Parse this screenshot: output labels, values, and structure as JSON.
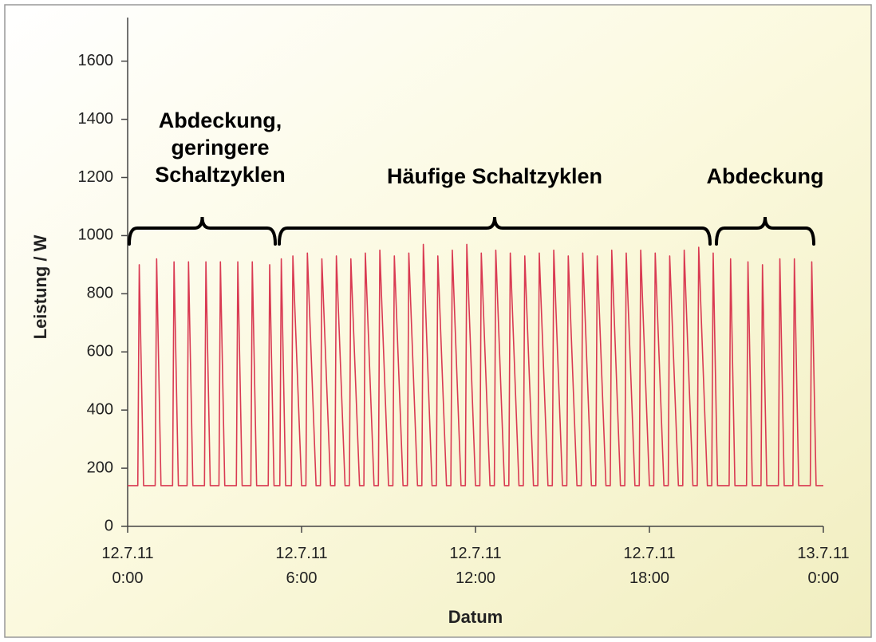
{
  "chart_data": {
    "type": "line",
    "xlabel": "Datum",
    "ylabel": "Leistung / W",
    "color": "#d93a52",
    "xlim": [
      0,
      24
    ],
    "ylim": [
      0,
      1750
    ],
    "xticks": [
      {
        "value": 0,
        "label": "12.7.11 0:00"
      },
      {
        "value": 6,
        "label": "12.7.11 6:00"
      },
      {
        "value": 12,
        "label": "12.7.11 12:00"
      },
      {
        "value": 18,
        "label": "12.7.11 18:00"
      },
      {
        "value": 24,
        "label": "13.7.11 0:00"
      }
    ],
    "yticks": [
      0,
      200,
      400,
      600,
      800,
      1000,
      1200,
      1400,
      1600
    ],
    "grid": false,
    "annotations": [
      {
        "text": [
          "Abdeckung,",
          "geringere",
          "Schaltzyklen"
        ]
      },
      {
        "text": [
          "Häufige Schaltzyklen"
        ]
      },
      {
        "text": [
          "Abdeckung"
        ]
      }
    ],
    "x": [
      0,
      0.35,
      0.4,
      0.55,
      0.95,
      1.0,
      1.15,
      1.55,
      1.6,
      1.75,
      2.05,
      2.1,
      2.25,
      2.65,
      2.7,
      2.85,
      3.15,
      3.2,
      3.35,
      3.75,
      3.8,
      3.95,
      4.25,
      4.3,
      4.45,
      4.85,
      4.9,
      5.05,
      5.25,
      5.3,
      5.45,
      5.65,
      5.7,
      6.0,
      6.15,
      6.2,
      6.5,
      6.65,
      6.7,
      7.0,
      7.15,
      7.2,
      7.5,
      7.65,
      7.7,
      8.0,
      8.15,
      8.2,
      8.5,
      8.65,
      8.7,
      9.0,
      9.15,
      9.2,
      9.5,
      9.65,
      9.7,
      10.0,
      10.15,
      10.2,
      10.5,
      10.65,
      10.7,
      11.0,
      11.15,
      11.2,
      11.5,
      11.65,
      11.7,
      12.0,
      12.15,
      12.2,
      12.5,
      12.65,
      12.7,
      13.0,
      13.15,
      13.2,
      13.5,
      13.65,
      13.7,
      14.0,
      14.15,
      14.2,
      14.5,
      14.65,
      14.7,
      15.0,
      15.15,
      15.2,
      15.5,
      15.65,
      15.7,
      16.0,
      16.15,
      16.2,
      16.5,
      16.65,
      16.7,
      17.0,
      17.15,
      17.2,
      17.5,
      17.65,
      17.7,
      18.0,
      18.15,
      18.2,
      18.5,
      18.65,
      18.7,
      19.0,
      19.15,
      19.2,
      19.5,
      19.65,
      19.7,
      20.0,
      20.15,
      20.2,
      20.35,
      20.75,
      20.8,
      20.95,
      21.35,
      21.4,
      21.55,
      21.85,
      21.9,
      22.05,
      22.45,
      22.5,
      22.65,
      22.95,
      23.0,
      23.15,
      23.55,
      23.6,
      23.75,
      24
    ],
    "values": [
      140,
      140,
      900,
      140,
      140,
      920,
      140,
      140,
      910,
      140,
      140,
      910,
      140,
      140,
      910,
      140,
      140,
      910,
      140,
      140,
      910,
      140,
      140,
      910,
      140,
      140,
      900,
      140,
      140,
      920,
      140,
      140,
      930,
      140,
      140,
      940,
      140,
      140,
      920,
      140,
      140,
      930,
      140,
      140,
      920,
      140,
      140,
      940,
      140,
      140,
      950,
      140,
      140,
      930,
      140,
      140,
      940,
      140,
      140,
      970,
      140,
      140,
      930,
      140,
      140,
      950,
      140,
      140,
      970,
      140,
      140,
      940,
      140,
      140,
      950,
      140,
      140,
      940,
      140,
      140,
      930,
      140,
      140,
      940,
      140,
      140,
      950,
      140,
      140,
      930,
      140,
      140,
      940,
      140,
      140,
      930,
      140,
      140,
      950,
      140,
      140,
      940,
      140,
      140,
      950,
      140,
      140,
      940,
      140,
      140,
      930,
      140,
      140,
      950,
      140,
      140,
      960,
      140,
      140,
      940,
      140,
      140,
      920,
      140,
      140,
      910,
      140,
      140,
      900,
      140,
      140,
      920,
      140,
      140,
      920,
      140,
      140,
      910,
      140,
      140
    ]
  }
}
